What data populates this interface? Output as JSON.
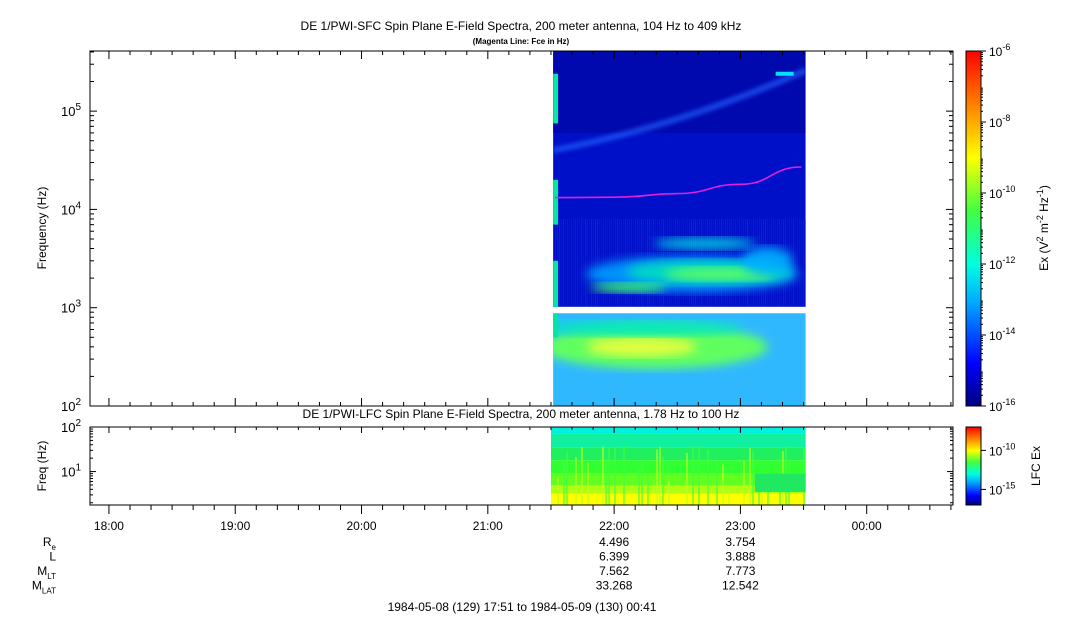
{
  "chart_data": {
    "type": "heatmap",
    "panels": [
      {
        "id": "sfc",
        "title": "DE 1/PWI-SFC  Spin Plane E-Field Spectra, 200 meter antenna, 104 Hz to 409 kHz",
        "subtitle": "(Magenta Line: Fce in Hz)",
        "ylabel": "Frequency (Hz)",
        "yscale": "log",
        "ylim": [
          100,
          409000
        ],
        "yticks": [
          {
            "value": 100,
            "base": "10",
            "exp": "2"
          },
          {
            "value": 1000,
            "base": "10",
            "exp": "3"
          },
          {
            "value": 10000,
            "base": "10",
            "exp": "4"
          },
          {
            "value": 100000,
            "base": "10",
            "exp": "5"
          }
        ],
        "data_interval": [
          "21:31",
          "23:31"
        ],
        "fce_line": {
          "color": "#e020e0",
          "points": [
            [
              "21:32",
              13200
            ],
            [
              "22:00",
              13300
            ],
            [
              "22:30",
              14500
            ],
            [
              "23:00",
              18000
            ],
            [
              "23:29",
              27000
            ]
          ]
        },
        "colorbar": {
          "label_parts": [
            "Ex (V",
            "2",
            " m",
            "-2",
            " Hz",
            "-1",
            ")"
          ],
          "scale": "log",
          "range": [
            1e-16,
            1e-06
          ],
          "ticks": [
            {
              "value": 1e-16,
              "base": "10",
              "exp": "-16"
            },
            {
              "value": 1e-14,
              "base": "10",
              "exp": "-14"
            },
            {
              "value": 1e-12,
              "base": "10",
              "exp": "-12"
            },
            {
              "value": 1e-10,
              "base": "10",
              "exp": "-10"
            },
            {
              "value": 1e-08,
              "base": "10",
              "exp": "-8"
            },
            {
              "value": 1e-06,
              "base": "10",
              "exp": "-6"
            }
          ]
        }
      },
      {
        "id": "lfc",
        "title": "DE 1/PWI-LFC  Spin Plane E-Field Spectra, 200 meter antenna, 1.78 Hz to 100 Hz",
        "ylabel": "Freq (Hz)",
        "yscale": "log",
        "ylim": [
          1.78,
          100
        ],
        "yticks": [
          {
            "value": 10,
            "base": "10",
            "exp": "1"
          },
          {
            "value": 100,
            "base": "10",
            "exp": "2"
          }
        ],
        "data_interval": [
          "21:30",
          "23:31"
        ],
        "colorbar": {
          "label": "LFC Ex",
          "scale": "log",
          "range": [
            1e-17,
            1e-07
          ],
          "ticks": [
            {
              "value": 1e-15,
              "base": "10",
              "exp": "-15"
            },
            {
              "value": 1e-10,
              "base": "10",
              "exp": "-10"
            }
          ]
        }
      }
    ],
    "xaxis": {
      "start": "17:51",
      "end": "00:41",
      "ticks": [
        "18:00",
        "19:00",
        "20:00",
        "21:00",
        "22:00",
        "23:00",
        "00:00"
      ]
    },
    "ephemeris": {
      "rows": [
        {
          "main": "R",
          "sub": "e",
          "values": [
            "4.496",
            "3.754"
          ]
        },
        {
          "main": "L",
          "sub": "",
          "values": [
            "6.399",
            "3.888"
          ]
        },
        {
          "main": "M",
          "sub": "LT",
          "values": [
            "7.562",
            "7.773"
          ]
        },
        {
          "main": "M",
          "sub": "LAT",
          "values": [
            "33.268",
            "12.542"
          ]
        }
      ],
      "columns_at": [
        "22:00",
        "23:00"
      ]
    },
    "time_range_label": "1984-05-08 (129) 17:51 to 1984-05-09 (130) 00:41"
  }
}
